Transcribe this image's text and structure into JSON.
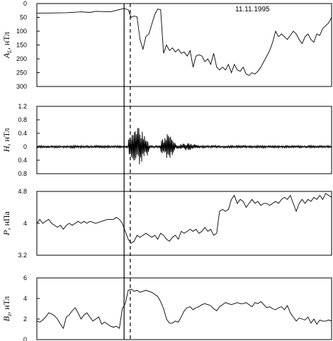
{
  "chart_data": {
    "type": "line",
    "date": "11.11.1995",
    "x_range": [
      0,
      100
    ],
    "markers": {
      "solid_x": 29.6,
      "dashed_x": 31.7
    },
    "panels": [
      {
        "id": "al",
        "ylabel": "A_L, нТл",
        "ylabel_main": "A",
        "ylabel_sub": "L",
        "ylabel_unit": ", нТл",
        "ylim": [
          0,
          300
        ],
        "inverted": true,
        "yticks": [
          0,
          50,
          100,
          150,
          200,
          250,
          300
        ],
        "ytick_labels": [
          "0",
          "50",
          "100",
          "150",
          "200",
          "250",
          "300"
        ],
        "points": [
          [
            0,
            35
          ],
          [
            5,
            34
          ],
          [
            10,
            33
          ],
          [
            15,
            30
          ],
          [
            18,
            32
          ],
          [
            20,
            28
          ],
          [
            25,
            30
          ],
          [
            28,
            22
          ],
          [
            29.5,
            18
          ],
          [
            31,
            22
          ],
          [
            32,
            50
          ],
          [
            33,
            45
          ],
          [
            34,
            48
          ],
          [
            35,
            130
          ],
          [
            36,
            165
          ],
          [
            37,
            120
          ],
          [
            38,
            110
          ],
          [
            39,
            75
          ],
          [
            40,
            40
          ],
          [
            41,
            20
          ],
          [
            42,
            22
          ],
          [
            43,
            180
          ],
          [
            44,
            150
          ],
          [
            45,
            170
          ],
          [
            46,
            160
          ],
          [
            47,
            175
          ],
          [
            48,
            165
          ],
          [
            49,
            180
          ],
          [
            50,
            175
          ],
          [
            51,
            190
          ],
          [
            52,
            170
          ],
          [
            53,
            230
          ],
          [
            54,
            190
          ],
          [
            55,
            185
          ],
          [
            56,
            190
          ],
          [
            57,
            210
          ],
          [
            58,
            200
          ],
          [
            59,
            220
          ],
          [
            60,
            180
          ],
          [
            61,
            230
          ],
          [
            62,
            240
          ],
          [
            63,
            230
          ],
          [
            64,
            240
          ],
          [
            65,
            220
          ],
          [
            66,
            250
          ],
          [
            67,
            220
          ],
          [
            68,
            240
          ],
          [
            69,
            245
          ],
          [
            70,
            230
          ],
          [
            71,
            255
          ],
          [
            72,
            260
          ],
          [
            73,
            250
          ],
          [
            74,
            255
          ],
          [
            75,
            245
          ],
          [
            76,
            230
          ],
          [
            77,
            210
          ],
          [
            78,
            190
          ],
          [
            79,
            170
          ],
          [
            80,
            140
          ],
          [
            81,
            100
          ],
          [
            82,
            120
          ],
          [
            83,
            110
          ],
          [
            84,
            120
          ],
          [
            85,
            130
          ],
          [
            86,
            115
          ],
          [
            87,
            100
          ],
          [
            88,
            110
          ],
          [
            89,
            130
          ],
          [
            90,
            145
          ],
          [
            91,
            120
          ],
          [
            92,
            110
          ],
          [
            93,
            130
          ],
          [
            94,
            140
          ],
          [
            95,
            110
          ],
          [
            96,
            115
          ],
          [
            97,
            90
          ],
          [
            98,
            80
          ],
          [
            99,
            70
          ],
          [
            100,
            50
          ]
        ]
      },
      {
        "id": "h",
        "ylabel": "H, нТл",
        "ylabel_main": "H",
        "ylabel_sub": "",
        "ylabel_unit": ", нТл",
        "ylim": [
          -0.8,
          1.2
        ],
        "inverted": false,
        "yticks": [
          1.2,
          0.8,
          0.4,
          0,
          -0.4,
          -0.8
        ],
        "ytick_labels": [
          "1.2",
          "0.8",
          "0.4",
          "0",
          "0.4",
          "0.8"
        ],
        "noise": {
          "base_amplitude": 0.035,
          "bursts": [
            {
              "x_start": 31,
              "x_end": 38,
              "amplitude": 0.6
            },
            {
              "x_start": 42,
              "x_end": 47,
              "amplitude": 0.4
            },
            {
              "x_start": 47,
              "x_end": 55,
              "amplitude": 0.12
            }
          ]
        }
      },
      {
        "id": "p",
        "ylabel": "P, нПа",
        "ylabel_main": "P",
        "ylabel_sub": "",
        "ylabel_unit": ", нПа",
        "ylim": [
          3.2,
          4.8
        ],
        "inverted": false,
        "yticks": [
          4.8,
          4,
          3.2
        ],
        "ytick_labels": [
          "4.8",
          "4",
          "3.2"
        ],
        "points": [
          [
            0,
            4.0
          ],
          [
            1,
            4.1
          ],
          [
            2,
            4.0
          ],
          [
            3,
            4.05
          ],
          [
            4,
            4.1
          ],
          [
            5,
            4.0
          ],
          [
            6,
            3.95
          ],
          [
            7,
            3.9
          ],
          [
            8,
            3.95
          ],
          [
            9,
            3.85
          ],
          [
            10,
            3.95
          ],
          [
            11,
            4.0
          ],
          [
            12,
            3.95
          ],
          [
            13,
            4.0
          ],
          [
            14,
            4.05
          ],
          [
            15,
            4.0
          ],
          [
            16,
            4.05
          ],
          [
            17,
            4.0
          ],
          [
            18,
            4.05
          ],
          [
            20,
            4.0
          ],
          [
            22,
            4.05
          ],
          [
            24,
            4.1
          ],
          [
            26,
            4.1
          ],
          [
            27,
            4.15
          ],
          [
            28,
            4.1
          ],
          [
            29,
            4.0
          ],
          [
            30,
            3.8
          ],
          [
            31,
            3.6
          ],
          [
            32,
            3.5
          ],
          [
            33,
            3.55
          ],
          [
            34,
            3.7
          ],
          [
            35,
            3.65
          ],
          [
            36,
            3.7
          ],
          [
            37,
            3.75
          ],
          [
            38,
            3.7
          ],
          [
            39,
            3.65
          ],
          [
            40,
            3.7
          ],
          [
            41,
            3.6
          ],
          [
            42,
            3.75
          ],
          [
            43,
            3.7
          ],
          [
            44,
            3.6
          ],
          [
            45,
            3.55
          ],
          [
            46,
            3.65
          ],
          [
            47,
            3.7
          ],
          [
            48,
            3.6
          ],
          [
            49,
            3.8
          ],
          [
            50,
            3.75
          ],
          [
            51,
            3.8
          ],
          [
            52,
            3.85
          ],
          [
            53,
            3.8
          ],
          [
            54,
            3.85
          ],
          [
            55,
            3.75
          ],
          [
            56,
            3.8
          ],
          [
            57,
            3.9
          ],
          [
            58,
            3.8
          ],
          [
            59,
            3.85
          ],
          [
            60,
            3.7
          ],
          [
            61,
            3.75
          ],
          [
            62,
            4.3
          ],
          [
            63,
            4.35
          ],
          [
            64,
            4.3
          ],
          [
            65,
            4.35
          ],
          [
            66,
            4.6
          ],
          [
            67,
            4.7
          ],
          [
            68,
            4.5
          ],
          [
            69,
            4.6
          ],
          [
            70,
            4.55
          ],
          [
            71,
            4.4
          ],
          [
            72,
            4.5
          ],
          [
            73,
            4.6
          ],
          [
            74,
            4.5
          ],
          [
            75,
            4.55
          ],
          [
            76,
            4.45
          ],
          [
            77,
            4.5
          ],
          [
            78,
            4.5
          ],
          [
            79,
            4.45
          ],
          [
            80,
            4.5
          ],
          [
            81,
            4.55
          ],
          [
            82,
            4.5
          ],
          [
            83,
            4.6
          ],
          [
            84,
            4.65
          ],
          [
            85,
            4.6
          ],
          [
            86,
            4.7
          ],
          [
            87,
            4.5
          ],
          [
            88,
            4.3
          ],
          [
            89,
            4.5
          ],
          [
            90,
            4.6
          ],
          [
            91,
            4.5
          ],
          [
            92,
            4.6
          ],
          [
            93,
            4.55
          ],
          [
            94,
            4.65
          ],
          [
            95,
            4.6
          ],
          [
            96,
            4.7
          ],
          [
            97,
            4.6
          ],
          [
            98,
            4.75
          ],
          [
            99,
            4.7
          ],
          [
            100,
            4.65
          ]
        ]
      },
      {
        "id": "bz",
        "ylabel": "B_z, нТл",
        "ylabel_main": "B",
        "ylabel_sub": "z",
        "ylabel_unit": ", нТл",
        "ylim": [
          0,
          6
        ],
        "inverted": false,
        "yticks": [
          6,
          4,
          2,
          0
        ],
        "ytick_labels": [
          "6",
          "4",
          "2",
          "0"
        ],
        "points": [
          [
            0,
            1.8
          ],
          [
            1,
            1.7
          ],
          [
            2,
            1.9
          ],
          [
            3,
            2.2
          ],
          [
            4,
            2.6
          ],
          [
            5,
            2.5
          ],
          [
            6,
            2.3
          ],
          [
            7,
            2.0
          ],
          [
            8,
            1.5
          ],
          [
            9,
            1.1
          ],
          [
            10,
            2.2
          ],
          [
            11,
            2.4
          ],
          [
            12,
            2.8
          ],
          [
            13,
            3.1
          ],
          [
            14,
            2.6
          ],
          [
            15,
            2.0
          ],
          [
            16,
            2.4
          ],
          [
            17,
            2.6
          ],
          [
            18,
            2.2
          ],
          [
            19,
            1.8
          ],
          [
            20,
            2.0
          ],
          [
            21,
            2.2
          ],
          [
            22,
            1.5
          ],
          [
            23,
            1.7
          ],
          [
            24,
            1.5
          ],
          [
            25,
            1.3
          ],
          [
            26,
            1.2
          ],
          [
            27,
            1.3
          ],
          [
            28,
            1.1
          ],
          [
            29,
            3.0
          ],
          [
            30,
            3.5
          ],
          [
            31,
            4.8
          ],
          [
            32,
            4.9
          ],
          [
            33,
            4.7
          ],
          [
            34,
            4.8
          ],
          [
            35,
            4.6
          ],
          [
            36,
            4.7
          ],
          [
            37,
            4.8
          ],
          [
            38,
            4.7
          ],
          [
            39,
            4.6
          ],
          [
            40,
            4.4
          ],
          [
            41,
            4.2
          ],
          [
            42,
            3.7
          ],
          [
            43,
            3.0
          ],
          [
            44,
            2.0
          ],
          [
            45,
            1.6
          ],
          [
            46,
            1.6
          ],
          [
            47,
            1.8
          ],
          [
            48,
            1.7
          ],
          [
            49,
            2.2
          ],
          [
            50,
            2.8
          ],
          [
            51,
            3.1
          ],
          [
            52,
            3.2
          ],
          [
            53,
            2.9
          ],
          [
            54,
            3.1
          ],
          [
            55,
            3.2
          ],
          [
            56,
            3.4
          ],
          [
            57,
            3.5
          ],
          [
            58,
            3.4
          ],
          [
            59,
            3.3
          ],
          [
            60,
            3.0
          ],
          [
            61,
            2.8
          ],
          [
            62,
            3.2
          ],
          [
            63,
            3.4
          ],
          [
            64,
            3.6
          ],
          [
            65,
            3.5
          ],
          [
            66,
            3.4
          ],
          [
            67,
            3.5
          ],
          [
            68,
            3.6
          ],
          [
            69,
            3.5
          ],
          [
            70,
            3.5
          ],
          [
            71,
            3.6
          ],
          [
            72,
            3.4
          ],
          [
            73,
            3.2
          ],
          [
            74,
            3.6
          ],
          [
            75,
            3.5
          ],
          [
            76,
            3.7
          ],
          [
            77,
            3.4
          ],
          [
            78,
            3.1
          ],
          [
            79,
            3.2
          ],
          [
            80,
            3.0
          ],
          [
            81,
            2.9
          ],
          [
            82,
            3.1
          ],
          [
            83,
            3.2
          ],
          [
            84,
            2.9
          ],
          [
            85,
            3.3
          ],
          [
            86,
            2.6
          ],
          [
            87,
            2.2
          ],
          [
            88,
            1.8
          ],
          [
            89,
            2.1
          ],
          [
            90,
            2.0
          ],
          [
            91,
            1.9
          ],
          [
            92,
            2.2
          ],
          [
            93,
            1.6
          ],
          [
            94,
            2.0
          ],
          [
            95,
            1.5
          ],
          [
            96,
            1.9
          ],
          [
            97,
            1.8
          ],
          [
            98,
            1.8
          ],
          [
            99,
            1.9
          ],
          [
            100,
            1.8
          ]
        ]
      }
    ]
  }
}
